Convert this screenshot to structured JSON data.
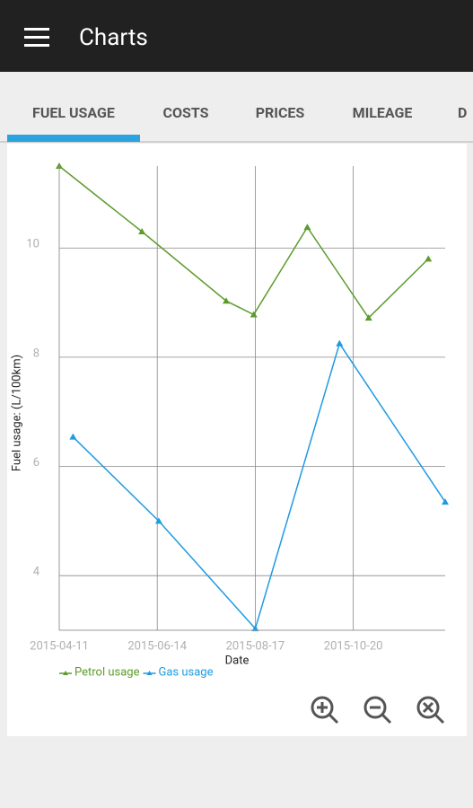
{
  "app_bar": {
    "title": "Charts"
  },
  "tabs": [
    "FUEL USAGE",
    "COSTS",
    "PRICES",
    "MILEAGE",
    "D"
  ],
  "chart_data": {
    "type": "line",
    "x_label": "Date",
    "y_label": "Fuel usage: (L/100km)",
    "series": [
      {
        "name": "Petrol usage",
        "color": "#5d9c2c",
        "x": [
          "2015-04-11",
          "2015-06-04",
          "2015-07-29",
          "2015-08-16",
          "2015-09-20",
          "2015-10-30",
          "2015-12-08"
        ],
        "values": [
          11.5,
          10.3,
          9.03,
          8.78,
          10.38,
          8.72,
          9.8
        ]
      },
      {
        "name": "Gas usage",
        "color": "#1e9be0",
        "x": [
          "2015-04-20",
          "2015-06-15",
          "2015-08-17",
          "2015-10-11",
          "2015-12-19"
        ],
        "values": [
          6.54,
          5.0,
          3.03,
          8.25,
          5.35
        ]
      }
    ],
    "xlim": [
      "2015-04-11",
      "2015-12-19"
    ],
    "xticks": [
      "2015-04-11",
      "2015-06-14",
      "2015-08-17",
      "2015-10-20"
    ],
    "ylim": [
      3,
      11.5
    ],
    "yticks": [
      4,
      6,
      8,
      10
    ],
    "grid": true
  }
}
